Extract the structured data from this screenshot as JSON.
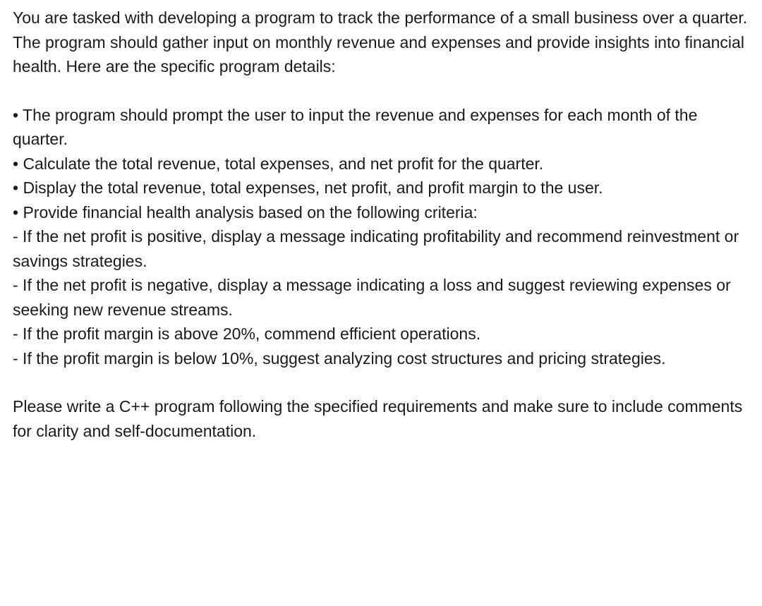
{
  "intro": "You are tasked with developing a program to track the performance of a small business over a quarter. The program should gather input on monthly revenue and expenses and provide insights into financial health. Here are the specific program details:",
  "bullets": {
    "b1": "• The program should prompt the user to input the revenue and expenses for each month of the quarter.",
    "b2": "• Calculate the total revenue, total expenses, and net profit for the quarter.",
    "b3": "• Display the total revenue, total expenses, net profit, and profit margin to the user.",
    "b4": "• Provide financial health analysis based on the following criteria:",
    "sub1": "  - If the net profit is positive, display a message indicating profitability and recommend reinvestment or savings strategies.",
    "sub2": "  - If the net profit is negative, display a message indicating a loss and suggest reviewing expenses or seeking new revenue streams.",
    "sub3": "  - If the profit margin is above 20%, commend efficient operations.",
    "sub4": "  - If the profit margin is below 10%, suggest analyzing cost structures and pricing strategies."
  },
  "outro": "Please write a C++ program following the specified requirements and make sure to include comments for clarity and self-documentation."
}
